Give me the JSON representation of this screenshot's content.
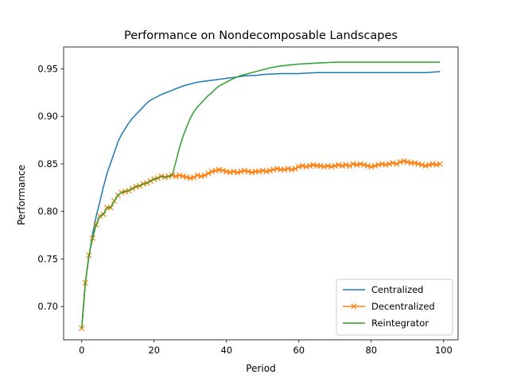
{
  "chart_data": {
    "type": "line",
    "title": "Performance on Nondecomposable Landscapes",
    "xlabel": "Period",
    "ylabel": "Performance",
    "xlim": [
      -5,
      104
    ],
    "ylim": [
      0.665,
      0.973
    ],
    "xticks": [
      0,
      20,
      40,
      60,
      80,
      100
    ],
    "yticks": [
      0.7,
      0.75,
      0.8,
      0.85,
      0.9,
      0.95
    ],
    "ytick_labels": [
      "0.70",
      "0.75",
      "0.80",
      "0.85",
      "0.90",
      "0.95"
    ],
    "grid": false,
    "legend_position": "lower-right",
    "series": [
      {
        "name": "Centralized",
        "color": "#1f77b4",
        "marker": "none",
        "x": [
          0,
          1,
          2,
          3,
          4,
          5,
          6,
          7,
          8,
          9,
          10,
          11,
          12,
          13,
          14,
          15,
          16,
          17,
          18,
          19,
          20,
          22,
          24,
          26,
          28,
          30,
          32,
          34,
          36,
          38,
          40,
          42,
          44,
          46,
          48,
          50,
          55,
          60,
          65,
          70,
          75,
          80,
          85,
          90,
          95,
          99
        ],
        "y": [
          0.677,
          0.725,
          0.753,
          0.776,
          0.795,
          0.81,
          0.826,
          0.84,
          0.851,
          0.862,
          0.873,
          0.881,
          0.887,
          0.893,
          0.898,
          0.902,
          0.906,
          0.91,
          0.914,
          0.917,
          0.919,
          0.923,
          0.926,
          0.929,
          0.932,
          0.934,
          0.936,
          0.937,
          0.938,
          0.939,
          0.94,
          0.941,
          0.942,
          0.943,
          0.943,
          0.944,
          0.945,
          0.945,
          0.946,
          0.946,
          0.946,
          0.946,
          0.946,
          0.946,
          0.946,
          0.947
        ]
      },
      {
        "name": "Decentralized",
        "color": "#ff7f0e",
        "marker": "x",
        "x": [
          0,
          1,
          2,
          3,
          4,
          5,
          6,
          7,
          8,
          9,
          10,
          11,
          12,
          13,
          14,
          15,
          16,
          17,
          18,
          19,
          20,
          21,
          22,
          23,
          24,
          25,
          26,
          27,
          28,
          29,
          30,
          31,
          32,
          33,
          34,
          35,
          36,
          37,
          38,
          39,
          40,
          41,
          42,
          43,
          44,
          45,
          46,
          47,
          48,
          49,
          50,
          51,
          52,
          53,
          54,
          55,
          56,
          57,
          58,
          59,
          60,
          61,
          62,
          63,
          64,
          65,
          66,
          67,
          68,
          69,
          70,
          71,
          72,
          73,
          74,
          75,
          76,
          77,
          78,
          79,
          80,
          81,
          82,
          83,
          84,
          85,
          86,
          87,
          88,
          89,
          90,
          91,
          92,
          93,
          94,
          95,
          96,
          97,
          98,
          99
        ],
        "y": [
          0.677,
          0.725,
          0.754,
          0.772,
          0.786,
          0.795,
          0.797,
          0.804,
          0.804,
          0.811,
          0.817,
          0.82,
          0.821,
          0.822,
          0.824,
          0.826,
          0.827,
          0.829,
          0.83,
          0.832,
          0.834,
          0.835,
          0.837,
          0.836,
          0.837,
          0.838,
          0.837,
          0.838,
          0.837,
          0.836,
          0.835,
          0.836,
          0.838,
          0.837,
          0.838,
          0.84,
          0.842,
          0.843,
          0.844,
          0.843,
          0.842,
          0.841,
          0.842,
          0.841,
          0.842,
          0.843,
          0.842,
          0.841,
          0.842,
          0.842,
          0.843,
          0.842,
          0.843,
          0.844,
          0.845,
          0.844,
          0.844,
          0.845,
          0.844,
          0.845,
          0.847,
          0.848,
          0.847,
          0.848,
          0.849,
          0.848,
          0.848,
          0.847,
          0.848,
          0.847,
          0.848,
          0.849,
          0.848,
          0.849,
          0.848,
          0.85,
          0.849,
          0.85,
          0.849,
          0.848,
          0.847,
          0.848,
          0.849,
          0.85,
          0.849,
          0.85,
          0.851,
          0.85,
          0.852,
          0.853,
          0.852,
          0.851,
          0.851,
          0.85,
          0.849,
          0.848,
          0.849,
          0.85,
          0.849,
          0.85
        ]
      },
      {
        "name": "Reintegrator",
        "color": "#2ca02c",
        "marker": "none",
        "x": [
          0,
          1,
          2,
          3,
          4,
          5,
          6,
          7,
          8,
          9,
          10,
          11,
          12,
          13,
          14,
          15,
          16,
          17,
          18,
          19,
          20,
          21,
          22,
          23,
          24,
          25,
          26,
          27,
          28,
          29,
          30,
          31,
          32,
          33,
          34,
          35,
          36,
          37,
          38,
          39,
          40,
          42,
          44,
          46,
          48,
          50,
          52,
          55,
          60,
          65,
          70,
          75,
          80,
          85,
          90,
          95,
          99
        ],
        "y": [
          0.677,
          0.725,
          0.754,
          0.772,
          0.786,
          0.795,
          0.797,
          0.804,
          0.804,
          0.811,
          0.817,
          0.82,
          0.821,
          0.822,
          0.824,
          0.826,
          0.827,
          0.829,
          0.83,
          0.832,
          0.834,
          0.835,
          0.837,
          0.836,
          0.837,
          0.838,
          0.852,
          0.867,
          0.879,
          0.889,
          0.898,
          0.905,
          0.91,
          0.914,
          0.918,
          0.922,
          0.925,
          0.929,
          0.932,
          0.934,
          0.936,
          0.94,
          0.943,
          0.945,
          0.947,
          0.949,
          0.951,
          0.953,
          0.955,
          0.956,
          0.957,
          0.957,
          0.957,
          0.957,
          0.957,
          0.957,
          0.957
        ]
      }
    ]
  }
}
